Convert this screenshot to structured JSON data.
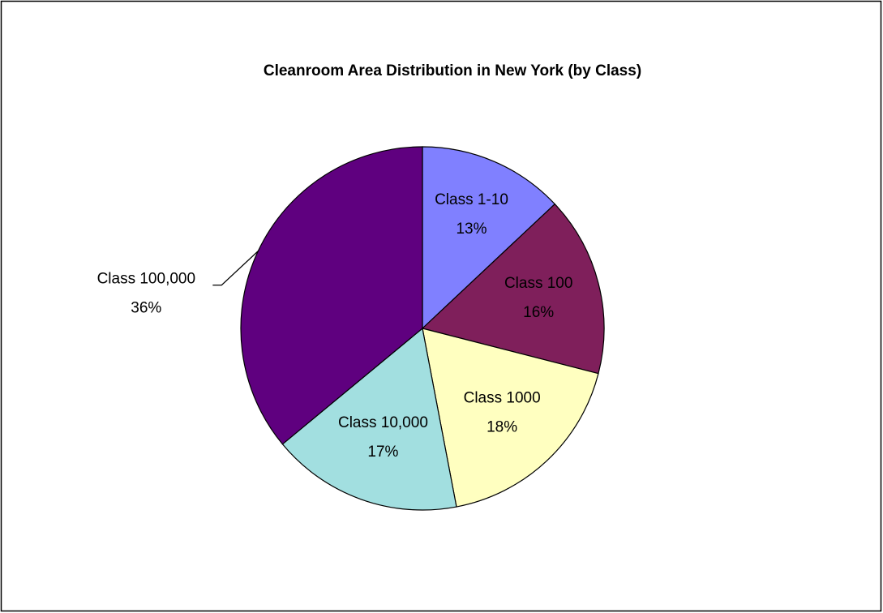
{
  "chart_data": {
    "type": "pie",
    "title": "Cleanroom Area Distribution in New York (by Class)",
    "categories": [
      "Class 1-10",
      "Class 100",
      "Class 1000",
      "Class 10,000",
      "Class 100,000"
    ],
    "values": [
      13,
      16,
      18,
      17,
      36
    ],
    "value_labels": [
      "13%",
      "16%",
      "18%",
      "17%",
      "36%"
    ],
    "colors": [
      "#8080ff",
      "#7f1f5b",
      "#ffffc0",
      "#a2dfe0",
      "#5f007f"
    ]
  }
}
